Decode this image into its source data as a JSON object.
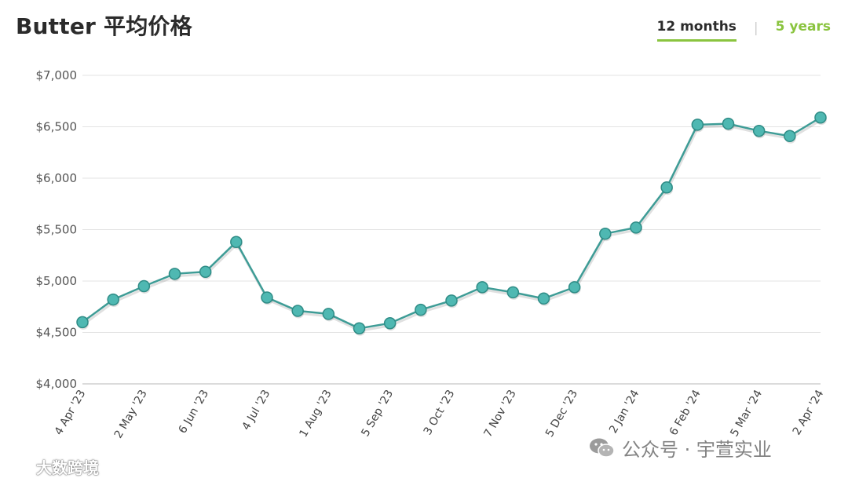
{
  "header": {
    "title": "Butter 平均价格",
    "tabs": [
      {
        "label": "12 months",
        "active": true
      },
      {
        "label": "5 years",
        "active": false
      }
    ],
    "separator": "|"
  },
  "colors": {
    "line": "#3e9c96",
    "marker_fill": "#4fb8b2",
    "marker_stroke": "#2f8c86",
    "accent": "#8ac43f",
    "grid": "#e3e3e3"
  },
  "chart_data": {
    "type": "line",
    "title": "Butter 平均价格",
    "xlabel": "",
    "ylabel": "",
    "ylim": [
      4000,
      7000
    ],
    "yticks": [
      4000,
      4500,
      5000,
      5500,
      6000,
      6500,
      7000
    ],
    "ytick_labels": [
      "$4,000",
      "$4,500",
      "$5,000",
      "$5,500",
      "$6,000",
      "$6,500",
      "$7,000"
    ],
    "x_tick_labels": [
      "4 Apr '23",
      "2 May '23",
      "6 Jun '23",
      "4 Jul '23",
      "1 Aug '23",
      "5 Sep '23",
      "3 Oct '23",
      "7 Nov '23",
      "5 Dec '23",
      "2 Jan '24",
      "6 Feb '24",
      "5 Mar '24",
      "2 Apr '24"
    ],
    "grid": true,
    "legend": "none",
    "series": [
      {
        "values": [
          4600,
          4820,
          4950,
          5070,
          5090,
          5380,
          4840,
          4710,
          4680,
          4540,
          4590,
          4720,
          4810,
          4940,
          4890,
          4830,
          4940,
          5460,
          5520,
          5910,
          6520,
          6530,
          6460,
          6410,
          6590
        ]
      }
    ]
  },
  "watermarks": {
    "bottom_left": "大数跨境",
    "bottom_right": "公众号 · 宇萱实业"
  }
}
